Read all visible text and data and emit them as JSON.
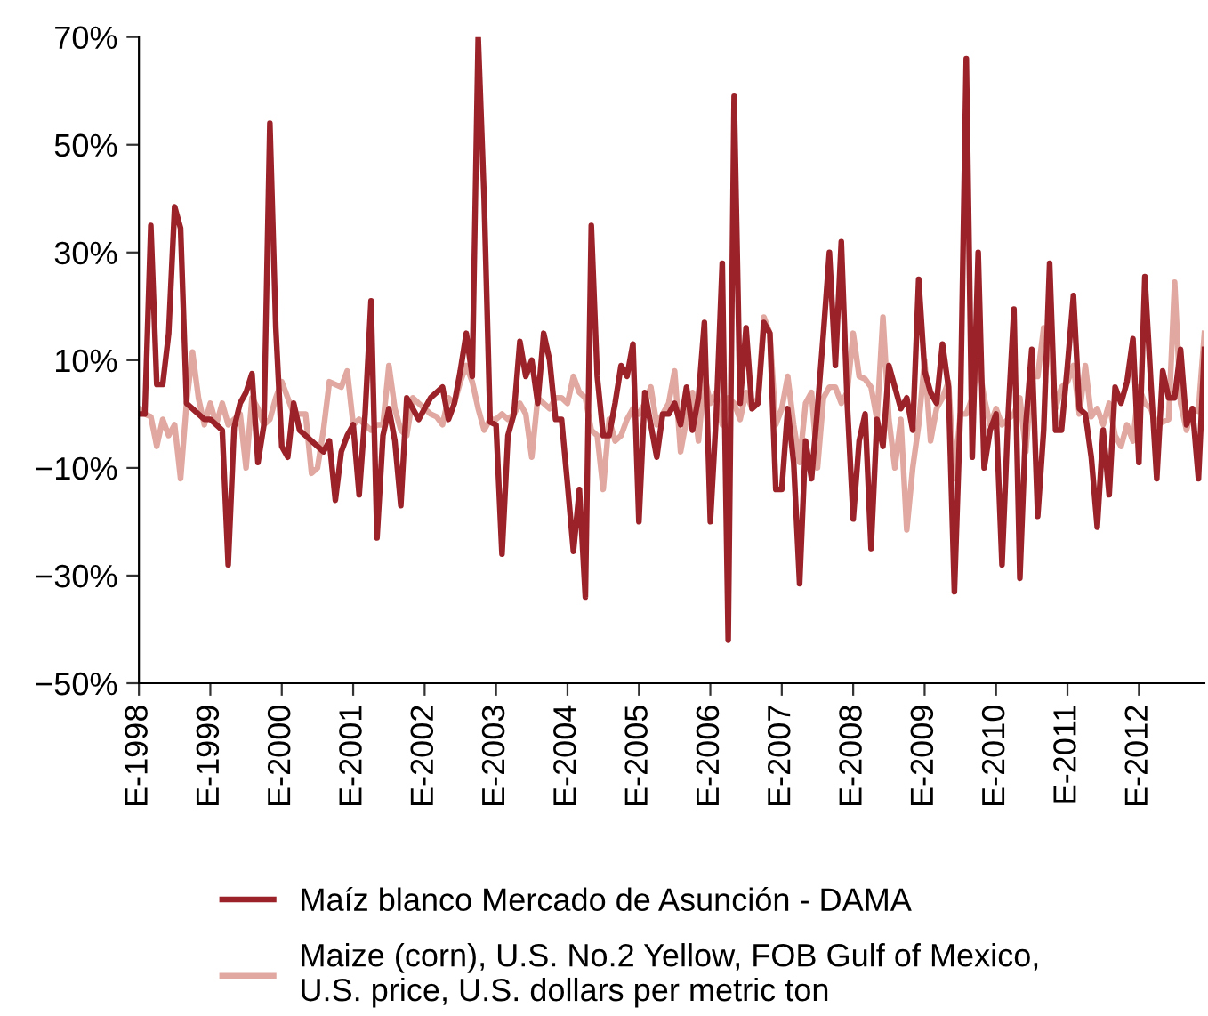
{
  "chart_data": {
    "type": "line",
    "categories": [
      "E-1998",
      null,
      null,
      null,
      null,
      null,
      null,
      null,
      null,
      null,
      null,
      null,
      "E-1999",
      null,
      null,
      null,
      null,
      null,
      null,
      null,
      null,
      null,
      null,
      null,
      "E-2000",
      null,
      null,
      null,
      null,
      null,
      null,
      null,
      null,
      null,
      null,
      null,
      "E-2001",
      null,
      null,
      null,
      null,
      null,
      null,
      null,
      null,
      null,
      null,
      null,
      "E-2002",
      null,
      null,
      null,
      null,
      null,
      null,
      null,
      null,
      null,
      null,
      null,
      "E-2003",
      null,
      null,
      null,
      null,
      null,
      null,
      null,
      null,
      null,
      null,
      null,
      "E-2004",
      null,
      null,
      null,
      null,
      null,
      null,
      null,
      null,
      null,
      null,
      null,
      "E-2005",
      null,
      null,
      null,
      null,
      null,
      null,
      null,
      null,
      null,
      null,
      null,
      "E-2006",
      null,
      null,
      null,
      null,
      null,
      null,
      null,
      null,
      null,
      null,
      null,
      "E-2007",
      null,
      null,
      null,
      null,
      null,
      null,
      null,
      null,
      null,
      null,
      null,
      "E-2008",
      null,
      null,
      null,
      null,
      null,
      null,
      null,
      null,
      null,
      null,
      null,
      "E-2009",
      null,
      null,
      null,
      null,
      null,
      null,
      null,
      null,
      null,
      null,
      null,
      "E-2010",
      null,
      null,
      null,
      null,
      null,
      null,
      null,
      null,
      null,
      null,
      null,
      "E-2011",
      null,
      null,
      null,
      null,
      null,
      null,
      null,
      null,
      null,
      null,
      null,
      "E-2012",
      null,
      null,
      null,
      null,
      null,
      null,
      null,
      null,
      null,
      null,
      null
    ],
    "series": [
      {
        "name": "Maíz blanco Mercado de Asunción - DAMA",
        "color": "#9b2229",
        "values": [
          0,
          0,
          35,
          5.5,
          5.5,
          15,
          38.5,
          34.5,
          2,
          1,
          0,
          -1,
          -1,
          -2,
          -3,
          -28,
          -2.5,
          2,
          4,
          7.5,
          -9,
          -2,
          54,
          16,
          -6,
          -8,
          2,
          -3,
          -4,
          -5,
          -6,
          -7,
          -5,
          -16,
          -7,
          -4,
          -2,
          -15,
          0,
          21,
          -23,
          -4,
          1,
          -5,
          -17,
          3,
          1,
          -1,
          1,
          3,
          4,
          5,
          -1,
          2,
          8,
          15,
          7,
          70,
          40,
          -1.5,
          -2,
          -26,
          -4,
          0,
          13.5,
          7,
          10,
          2,
          15,
          10,
          -1,
          -1,
          -13,
          -25.5,
          -14,
          -34,
          35,
          7,
          -4,
          -4,
          2,
          9,
          7,
          13,
          -20,
          4,
          -2,
          -8,
          0,
          0,
          2,
          -2,
          5,
          -3,
          3,
          17,
          -20,
          0,
          28,
          -42,
          59,
          2,
          16,
          1,
          2,
          17,
          15,
          -14,
          -14,
          1,
          -9,
          -31.5,
          -5,
          -12,
          1,
          15,
          30,
          9,
          32,
          2,
          -19.5,
          -5,
          0,
          -25,
          -1,
          -6,
          9,
          5,
          1,
          3,
          -3,
          25,
          8,
          4,
          2,
          13,
          5,
          -33,
          0,
          66,
          -8,
          30,
          -10,
          -3,
          0,
          -28,
          -1,
          19.5,
          -30.5,
          -2,
          12,
          -19,
          -3,
          28,
          -3,
          -3,
          9,
          22,
          1,
          0,
          -8,
          -21,
          -3,
          -15,
          5,
          2,
          6,
          14,
          -9,
          25.5,
          6,
          -12,
          8,
          3,
          3,
          12,
          -2,
          1,
          -12,
          12
        ]
      },
      {
        "name": "Maize (corn), U.S. No.2 Yellow, FOB Gulf of Mexico,\nU.S. price, U.S. dollars per metric ton",
        "color": "#e0a8a0",
        "values": [
          1,
          0,
          -0.5,
          -6,
          -1,
          -4,
          -2,
          -12,
          2,
          11.5,
          3,
          -2,
          2,
          -2,
          2,
          -2,
          -1,
          0,
          -10,
          3,
          1,
          -2,
          -1,
          3,
          6,
          3,
          0,
          0,
          0,
          -11,
          -10,
          -3,
          6,
          5.5,
          5,
          8,
          -2,
          -1,
          -2,
          -3,
          -2,
          -2,
          9,
          1,
          -3,
          -4,
          3,
          2,
          1,
          0,
          -0.5,
          -2,
          3,
          2,
          6,
          9,
          6,
          1,
          -3,
          -1,
          -1,
          0,
          -1,
          0,
          2,
          0,
          -8,
          3,
          2,
          1,
          3,
          3,
          2,
          7,
          4,
          3,
          -3,
          -4,
          -14,
          -1,
          -5,
          -4,
          -1,
          1,
          0,
          2,
          5,
          -2,
          0,
          2,
          8,
          -7,
          -1,
          4,
          -5,
          7,
          2,
          4,
          -2,
          3,
          2,
          -1,
          4,
          1,
          3,
          18,
          15,
          -2,
          1,
          7,
          -2,
          -9,
          2,
          4,
          -10,
          3,
          5,
          5,
          2,
          4,
          15,
          7,
          6.5,
          5,
          -1,
          18,
          -1,
          -10,
          -1,
          -21.5,
          -10,
          -2,
          10,
          -5,
          1,
          3,
          6,
          -12,
          0,
          0,
          3,
          10,
          3,
          -2,
          1,
          -2,
          -1,
          0,
          3,
          -7,
          7,
          7,
          16,
          14.5,
          1,
          5,
          6,
          9,
          0,
          9,
          -0.5,
          1,
          -2,
          2,
          -4,
          -6,
          -2,
          -5,
          5,
          2,
          1,
          -2,
          -1.5,
          -1,
          24.5,
          2,
          -3,
          1,
          0.5,
          15
        ]
      }
    ],
    "ylim": [
      -50,
      70
    ],
    "yticks": [
      {
        "value": -50,
        "label": "−50%"
      },
      {
        "value": -30,
        "label": "−30%"
      },
      {
        "value": -10,
        "label": "−10%"
      },
      {
        "value": 10,
        "label": "10%"
      },
      {
        "value": 30,
        "label": "30%"
      },
      {
        "value": 50,
        "label": "50%"
      },
      {
        "value": 70,
        "label": "70%"
      }
    ],
    "grid": false,
    "legend": "bottom",
    "line_style": "solid",
    "marker": "none"
  }
}
